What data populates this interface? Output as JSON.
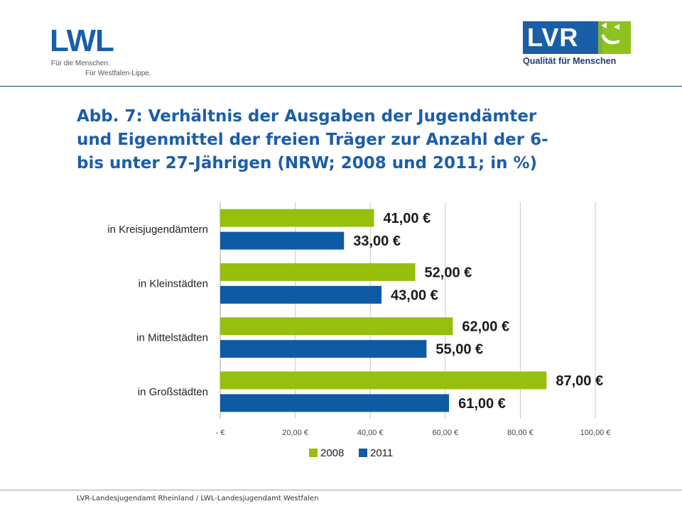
{
  "header": {
    "lwl_logo": {
      "wordmark": "LWL",
      "tagline_line1": "Für die Menschen.",
      "tagline_line2": "Für Westfalen-Lippe."
    },
    "lvr_logo": {
      "wordmark": "LVR",
      "tagline": "Qualität für Menschen"
    }
  },
  "title": {
    "line1": "Abb. 7: Verhältnis der Ausgaben der Jugendämter",
    "line2": "und Eigenmittel der freien Träger zur Anzahl der 6-",
    "line3": "bis unter 27-Jährigen (NRW; 2008 und 2011; in %)"
  },
  "footer": {
    "text": "LVR-Landesjugendamt Rheinland / LWL-Landesjugendamt Westfalen"
  },
  "colors": {
    "brand_blue": "#1b5ea8",
    "brand_green": "#8dc21f",
    "bar_2008": "#97bf0d",
    "bar_2011": "#0f5aa5"
  },
  "chart_data": {
    "type": "bar",
    "orientation": "horizontal",
    "categories": [
      "in Kreisjugendämtern",
      "in Kleinstädten",
      "in Mittelstädten",
      "in Großstädten"
    ],
    "series": [
      {
        "name": "2008",
        "values": [
          41,
          52,
          62,
          87
        ],
        "labels": [
          "41,00 €",
          "52,00 €",
          "62,00 €",
          "87,00 €"
        ]
      },
      {
        "name": "2011",
        "values": [
          33,
          43,
          55,
          61
        ],
        "labels": [
          "33,00 €",
          "43,00 €",
          "55,00 €",
          "61,00 €"
        ]
      }
    ],
    "xlim": [
      0,
      100
    ],
    "xticks": [
      0,
      20,
      40,
      60,
      80,
      100
    ],
    "xtick_labels": [
      "-   €",
      "20,00 €",
      "40,00 €",
      "60,00 €",
      "80,00 €",
      "100,00 €"
    ],
    "grid": true,
    "legend": [
      "2008",
      "2011"
    ],
    "legend_position": "bottom"
  }
}
